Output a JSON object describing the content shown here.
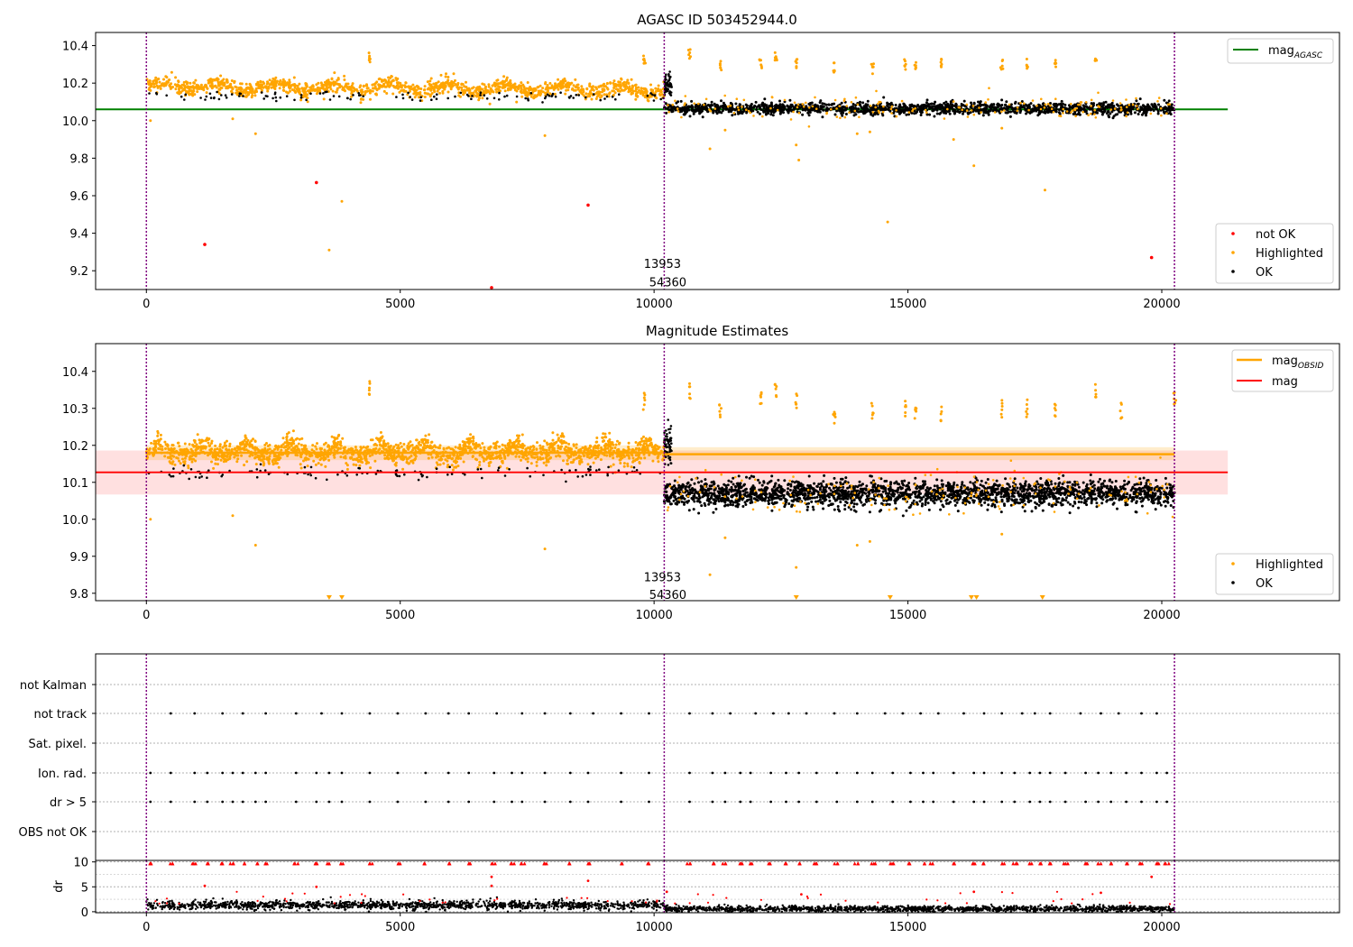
{
  "colors": {
    "orange": "#ffa500",
    "black": "#000000",
    "red": "#ff0000",
    "green": "#008000",
    "purple": "#800080",
    "grid": "#b0b0b0"
  },
  "chart_data": [
    {
      "type": "scatter",
      "title": "AGASC ID 503452944.0",
      "xlabel": "",
      "ylabel": "",
      "xlim": [
        -1000,
        23500
      ],
      "ylim": [
        9.1,
        10.47
      ],
      "xticks": [
        0,
        5000,
        10000,
        15000,
        20000
      ],
      "yticks": [
        9.2,
        9.4,
        9.6,
        9.8,
        10.0,
        10.2,
        10.4
      ],
      "obs_boundaries": [
        0,
        10200,
        20250
      ],
      "reference_line": {
        "name": "mag$_{AGASC}$",
        "label_main": "mag",
        "label_sub": "AGASC",
        "y": 10.06,
        "x_range": [
          -1000,
          21300
        ],
        "color": "#008000"
      },
      "legend_lines": [
        {
          "label_main": "mag",
          "label_sub": "AGASC",
          "color": "#008000",
          "location": "upper right"
        }
      ],
      "legend_points": [
        {
          "label": "not OK",
          "color": "#ff0000"
        },
        {
          "label": "Highlighted",
          "color": "#ffa500"
        },
        {
          "label": "OK",
          "color": "#000000"
        }
      ],
      "annotations": [
        {
          "text": "13953",
          "x": 10200,
          "y": 9.24
        },
        {
          "text": "54360",
          "x": 10200,
          "y": 9.14
        }
      ],
      "series": [
        {
          "name": "Highlighted",
          "segments": [
            {
              "x": [
                0,
                10200
              ],
              "y_center": 10.185,
              "y_spread": 0.055
            }
          ]
        },
        {
          "name": "OK",
          "segments": [
            {
              "x": [
                10200,
                20250
              ],
              "y_center": 10.065,
              "y_spread": 0.045
            }
          ]
        },
        {
          "name": "not OK",
          "x": [
            1150,
            3350,
            6800,
            8700,
            19800
          ],
          "y": [
            9.34,
            9.67,
            9.11,
            9.55,
            9.27
          ]
        },
        {
          "name": "Highlighted outliers",
          "x": [
            80,
            1700,
            2150,
            3600,
            3850,
            4400,
            7850,
            9800,
            11100,
            11400,
            12800,
            12850,
            14000,
            14250,
            14600,
            15900,
            16300,
            16850,
            17700,
            10700,
            11300,
            12100,
            12400,
            12800,
            13550,
            14300,
            14950,
            15150,
            15650,
            16850,
            17350,
            17900,
            18700
          ],
          "y": [
            10.0,
            10.01,
            9.93,
            9.31,
            9.57,
            10.34,
            9.92,
            10.32,
            9.85,
            9.95,
            9.87,
            9.79,
            9.93,
            9.94,
            9.46,
            9.9,
            9.76,
            9.96,
            9.63,
            10.35,
            10.3,
            10.3,
            10.34,
            10.3,
            10.28,
            10.28,
            10.3,
            10.3,
            10.3,
            10.3,
            10.3,
            10.3,
            10.3
          ]
        }
      ]
    },
    {
      "type": "scatter",
      "title": "Magnitude Estimates",
      "xlabel": "",
      "ylabel": "",
      "xlim": [
        -1000,
        23500
      ],
      "ylim": [
        9.78,
        10.475
      ],
      "xticks": [
        0,
        5000,
        10000,
        15000,
        20000
      ],
      "yticks": [
        9.8,
        9.9,
        10.0,
        10.1,
        10.2,
        10.3,
        10.4
      ],
      "obs_boundaries": [
        0,
        10200,
        20250
      ],
      "lines": [
        {
          "label_main": "mag",
          "label_sub": "OBSID",
          "color": "#ffa500",
          "segments": [
            {
              "x": [
                0,
                10200
              ],
              "y": 10.18,
              "band": [
                10.16,
                10.2
              ]
            },
            {
              "x": [
                10200,
                20250
              ],
              "y": 10.176,
              "band": [
                10.16,
                10.195
              ]
            }
          ]
        },
        {
          "label_main": "mag",
          "label_sub": "",
          "color": "#ff0000",
          "y": 10.127,
          "band": [
            10.067,
            10.186
          ],
          "x_range": [
            -1000,
            21300
          ]
        }
      ],
      "legend_points": [
        {
          "label": "Highlighted",
          "color": "#ffa500"
        },
        {
          "label": "OK",
          "color": "#000000"
        }
      ],
      "annotations": [
        {
          "text": "13953",
          "x": 10200,
          "y": 9.845
        },
        {
          "text": "54360",
          "x": 10200,
          "y": 9.797
        }
      ],
      "series": [
        {
          "name": "Highlighted",
          "segments": [
            {
              "x": [
                0,
                10200
              ],
              "y_center": 10.175,
              "y_spread": 0.05
            }
          ]
        },
        {
          "name": "OK",
          "segments": [
            {
              "x": [
                10200,
                20250
              ],
              "y_center": 10.07,
              "y_spread": 0.045
            }
          ]
        },
        {
          "name": "Highlighted outliers",
          "x": [
            80,
            1700,
            2150,
            4400,
            7850,
            9800,
            11100,
            11400,
            12800,
            14000,
            14250,
            16850,
            10700,
            11300,
            12100,
            12400,
            12800,
            13550,
            14300,
            14950,
            15150,
            15650,
            16850,
            17350,
            17900,
            18700,
            19200,
            20250
          ],
          "y": [
            10.0,
            10.01,
            9.93,
            10.35,
            9.92,
            10.32,
            9.85,
            9.95,
            9.87,
            9.93,
            9.94,
            9.96,
            10.35,
            10.3,
            10.33,
            10.34,
            10.32,
            10.28,
            10.29,
            10.3,
            10.29,
            10.28,
            10.3,
            10.3,
            10.29,
            10.34,
            10.29,
            10.32
          ]
        },
        {
          "name": "Below range markers",
          "x": [
            3600,
            3850,
            12800,
            14650,
            16250,
            16350,
            17650
          ],
          "y": [
            9.785,
            9.785,
            9.785,
            9.785,
            9.785,
            9.785,
            9.785
          ]
        }
      ]
    },
    {
      "type": "scatter",
      "title": "",
      "xlabel": "",
      "ylabel": "",
      "xlim": [
        -1000,
        23500
      ],
      "categories": [
        "not Kalman",
        "not track",
        "Sat. pixel.",
        "Ion. rad.",
        "dr > 5",
        "OBS not OK"
      ],
      "obs_boundaries": [
        0,
        10200,
        20250
      ],
      "flag_x": {
        "not track": [
          480,
          950,
          1500,
          1900,
          2350,
          2950,
          3450,
          3850,
          4400,
          4950,
          5500,
          5950,
          6350,
          6900,
          7400,
          7850,
          8350,
          8800,
          9350,
          9900,
          10700,
          11150,
          11500,
          12000,
          12350,
          12650,
          13000,
          13550,
          14000,
          14550,
          14900,
          15250,
          15600,
          16100,
          16500,
          16850,
          17250,
          17500,
          17800,
          18400,
          18800,
          19150,
          19600,
          19900
        ],
        "Ion. rad.": [
          80,
          480,
          950,
          1200,
          1500,
          1700,
          1900,
          2150,
          2350,
          2950,
          3350,
          3600,
          3850,
          4400,
          4950,
          5500,
          5950,
          6350,
          6850,
          7200,
          7400,
          7850,
          8350,
          8700,
          9350,
          9900,
          10700,
          11150,
          11400,
          11700,
          11900,
          12300,
          12600,
          12850,
          13200,
          13600,
          14000,
          14300,
          14700,
          15050,
          15300,
          15500,
          15900,
          16300,
          16500,
          16850,
          17100,
          17400,
          17600,
          17800,
          18100,
          18500,
          18750,
          19000,
          19300,
          19600,
          19900,
          20100
        ],
        "dr > 5": [
          80,
          480,
          950,
          1200,
          1500,
          1700,
          1900,
          2150,
          2350,
          2950,
          3350,
          3600,
          3850,
          4400,
          4950,
          5500,
          5950,
          6350,
          6850,
          7200,
          7400,
          7850,
          8350,
          8700,
          9350,
          9900,
          10700,
          11150,
          11400,
          11700,
          11900,
          12300,
          12600,
          12850,
          13200,
          13600,
          14000,
          14300,
          14700,
          15050,
          15300,
          15500,
          15900,
          16300,
          16500,
          16850,
          17100,
          17400,
          17600,
          17800,
          18100,
          18500,
          18750,
          19000,
          19300,
          19600,
          19900,
          20100
        ]
      }
    },
    {
      "type": "scatter",
      "title": "",
      "xlabel": "",
      "ylabel": "dr",
      "xlim": [
        -1000,
        23500
      ],
      "ylim": [
        -0.2,
        10.3
      ],
      "xticks": [
        0,
        5000,
        10000,
        15000,
        20000
      ],
      "yticks": [
        0,
        5,
        10
      ],
      "obs_boundaries": [
        0,
        10200,
        20250
      ],
      "series": [
        {
          "name": "dr OK",
          "segments": [
            {
              "x": [
                0,
                10200
              ],
              "y_center": 1.3,
              "y_spread": 0.7
            },
            {
              "x": [
                10200,
                20250
              ],
              "y_center": 0.6,
              "y_spread": 0.5
            }
          ]
        },
        {
          "name": "dr clipped (>=10)",
          "y": 9.7
        },
        {
          "name": "dr high",
          "x": [
            1150,
            3350,
            6800,
            6800,
            8700,
            19800,
            10250,
            12900,
            16300,
            18800
          ],
          "y": [
            5.2,
            5.0,
            7.0,
            5.2,
            6.2,
            7.0,
            4.0,
            3.5,
            4.0,
            3.8
          ]
        }
      ]
    }
  ]
}
